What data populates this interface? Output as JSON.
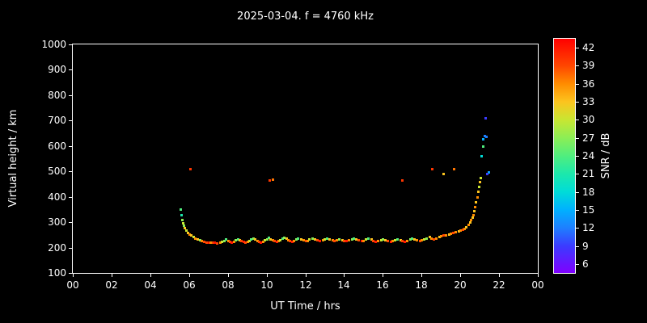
{
  "title": "2025-03-04. f = 4760 kHz",
  "colors": {
    "background": "#000000",
    "text": "#ffffff",
    "frame": "#ffffff"
  },
  "chart_data": {
    "type": "scatter",
    "title": "2025-03-04. f = 4760 kHz",
    "xlabel": "UT Time / hrs",
    "ylabel": "Virtual height / km",
    "xlim": [
      0,
      24
    ],
    "ylim": [
      100,
      1000
    ],
    "grid": false,
    "x_tick_values": [
      0,
      2,
      4,
      6,
      8,
      10,
      12,
      14,
      16,
      18,
      20,
      22,
      24
    ],
    "x_tick_labels": [
      "00",
      "02",
      "04",
      "06",
      "08",
      "10",
      "12",
      "14",
      "16",
      "18",
      "20",
      "22",
      "00"
    ],
    "y_tick_values": [
      100,
      200,
      300,
      400,
      500,
      600,
      700,
      800,
      900,
      1000
    ],
    "y_tick_labels": [
      "100",
      "200",
      "300",
      "400",
      "500",
      "600",
      "700",
      "800",
      "900",
      "1000"
    ],
    "colorbar": {
      "label": "SNR / dB",
      "min": 4.5,
      "max": 43.5,
      "tick_values": [
        6,
        9,
        12,
        15,
        18,
        21,
        24,
        27,
        30,
        33,
        36,
        39,
        42
      ],
      "tick_labels": [
        "6",
        "9",
        "12",
        "15",
        "18",
        "21",
        "24",
        "27",
        "30",
        "33",
        "36",
        "39",
        "42"
      ],
      "palette": [
        {
          "v": 4.5,
          "c": "#8000ff"
        },
        {
          "v": 9,
          "c": "#3b3bff"
        },
        {
          "v": 12,
          "c": "#1e7fff"
        },
        {
          "v": 15,
          "c": "#00b0ff"
        },
        {
          "v": 18,
          "c": "#00dcd8"
        },
        {
          "v": 21,
          "c": "#1ce8ac"
        },
        {
          "v": 24,
          "c": "#50ee7e"
        },
        {
          "v": 27,
          "c": "#8cee55"
        },
        {
          "v": 30,
          "c": "#c8e632"
        },
        {
          "v": 33,
          "c": "#fcc41e"
        },
        {
          "v": 36,
          "c": "#ff8c00"
        },
        {
          "v": 39,
          "c": "#ff4600"
        },
        {
          "v": 43.5,
          "c": "#ff0000"
        }
      ]
    },
    "points_format": [
      "ut_hours",
      "virtual_height_km",
      "snr_db"
    ],
    "points": [
      [
        5.55,
        352,
        24
      ],
      [
        5.6,
        330,
        21
      ],
      [
        5.63,
        310,
        27
      ],
      [
        5.68,
        298,
        30
      ],
      [
        5.72,
        288,
        27
      ],
      [
        5.78,
        278,
        33
      ],
      [
        5.85,
        268,
        30
      ],
      [
        5.92,
        260,
        33
      ],
      [
        6.0,
        254,
        36
      ],
      [
        6.05,
        510,
        40
      ],
      [
        6.1,
        248,
        33
      ],
      [
        6.2,
        243,
        30
      ],
      [
        6.3,
        238,
        36
      ],
      [
        6.42,
        233,
        33
      ],
      [
        6.55,
        229,
        27
      ],
      [
        6.65,
        226,
        36
      ],
      [
        6.78,
        224,
        39
      ],
      [
        6.9,
        222,
        39
      ],
      [
        7.0,
        220,
        42
      ],
      [
        7.1,
        221,
        36
      ],
      [
        7.2,
        222,
        39
      ],
      [
        7.3,
        220,
        42
      ],
      [
        7.45,
        219,
        39
      ],
      [
        7.6,
        221,
        36
      ],
      [
        7.7,
        224,
        30
      ],
      [
        7.8,
        228,
        27
      ],
      [
        7.9,
        232,
        24
      ],
      [
        8.0,
        228,
        36
      ],
      [
        8.1,
        224,
        39
      ],
      [
        8.2,
        222,
        42
      ],
      [
        8.3,
        225,
        36
      ],
      [
        8.4,
        230,
        27
      ],
      [
        8.5,
        235,
        24
      ],
      [
        8.6,
        230,
        33
      ],
      [
        8.7,
        226,
        39
      ],
      [
        8.8,
        223,
        42
      ],
      [
        8.9,
        221,
        39
      ],
      [
        9.0,
        224,
        36
      ],
      [
        9.1,
        228,
        30
      ],
      [
        9.2,
        233,
        24
      ],
      [
        9.3,
        237,
        27
      ],
      [
        9.4,
        232,
        33
      ],
      [
        9.5,
        228,
        36
      ],
      [
        9.6,
        224,
        39
      ],
      [
        9.7,
        222,
        42
      ],
      [
        9.8,
        225,
        36
      ],
      [
        9.9,
        230,
        30
      ],
      [
        10.0,
        235,
        27
      ],
      [
        10.1,
        240,
        24
      ],
      [
        10.15,
        465,
        40
      ],
      [
        10.2,
        235,
        33
      ],
      [
        10.3,
        230,
        36
      ],
      [
        10.32,
        468,
        37
      ],
      [
        10.4,
        226,
        39
      ],
      [
        10.5,
        223,
        42
      ],
      [
        10.6,
        226,
        36
      ],
      [
        10.7,
        231,
        30
      ],
      [
        10.8,
        236,
        24
      ],
      [
        10.9,
        240,
        27
      ],
      [
        11.0,
        236,
        33
      ],
      [
        11.1,
        231,
        36
      ],
      [
        11.2,
        227,
        39
      ],
      [
        11.3,
        224,
        42
      ],
      [
        11.4,
        227,
        36
      ],
      [
        11.5,
        232,
        27
      ],
      [
        11.6,
        237,
        24
      ],
      [
        11.75,
        233,
        33
      ],
      [
        11.9,
        229,
        36
      ],
      [
        12.0,
        226,
        39
      ],
      [
        12.1,
        228,
        36
      ],
      [
        12.2,
        232,
        30
      ],
      [
        12.35,
        236,
        27
      ],
      [
        12.5,
        232,
        33
      ],
      [
        12.6,
        229,
        39
      ],
      [
        12.75,
        227,
        42
      ],
      [
        12.9,
        230,
        36
      ],
      [
        13.0,
        234,
        30
      ],
      [
        13.1,
        238,
        24
      ],
      [
        13.25,
        234,
        33
      ],
      [
        13.4,
        230,
        36
      ],
      [
        13.5,
        228,
        39
      ],
      [
        13.6,
        231,
        36
      ],
      [
        13.75,
        235,
        27
      ],
      [
        13.9,
        231,
        33
      ],
      [
        14.0,
        228,
        39
      ],
      [
        14.1,
        226,
        42
      ],
      [
        14.25,
        229,
        36
      ],
      [
        14.4,
        233,
        27
      ],
      [
        14.5,
        237,
        24
      ],
      [
        14.6,
        233,
        33
      ],
      [
        14.75,
        229,
        39
      ],
      [
        14.9,
        226,
        42
      ],
      [
        15.0,
        228,
        36
      ],
      [
        15.1,
        232,
        30
      ],
      [
        15.25,
        236,
        24
      ],
      [
        15.4,
        232,
        33
      ],
      [
        15.5,
        228,
        39
      ],
      [
        15.6,
        225,
        42
      ],
      [
        15.75,
        227,
        36
      ],
      [
        15.9,
        231,
        30
      ],
      [
        16.0,
        235,
        27
      ],
      [
        16.1,
        231,
        33
      ],
      [
        16.25,
        227,
        39
      ],
      [
        16.4,
        224,
        42
      ],
      [
        16.5,
        226,
        36
      ],
      [
        16.6,
        230,
        30
      ],
      [
        16.75,
        234,
        24
      ],
      [
        16.9,
        230,
        33
      ],
      [
        17.0,
        465,
        40
      ],
      [
        17.0,
        227,
        39
      ],
      [
        17.1,
        225,
        42
      ],
      [
        17.25,
        228,
        36
      ],
      [
        17.4,
        232,
        27
      ],
      [
        17.5,
        236,
        24
      ],
      [
        17.6,
        232,
        33
      ],
      [
        17.75,
        229,
        36
      ],
      [
        17.9,
        227,
        39
      ],
      [
        18.0,
        230,
        36
      ],
      [
        18.1,
        234,
        30
      ],
      [
        18.25,
        238,
        27
      ],
      [
        18.4,
        242,
        33
      ],
      [
        18.5,
        238,
        36
      ],
      [
        18.55,
        510,
        40
      ],
      [
        18.6,
        235,
        39
      ],
      [
        18.75,
        238,
        36
      ],
      [
        18.9,
        242,
        33
      ],
      [
        19.0,
        246,
        36
      ],
      [
        19.1,
        490,
        33
      ],
      [
        19.1,
        250,
        39
      ],
      [
        19.25,
        248,
        36
      ],
      [
        19.4,
        252,
        33
      ],
      [
        19.5,
        255,
        36
      ],
      [
        19.6,
        258,
        39
      ],
      [
        19.65,
        510,
        37
      ],
      [
        19.75,
        262,
        36
      ],
      [
        19.9,
        265,
        33
      ],
      [
        20.0,
        268,
        36
      ],
      [
        20.1,
        272,
        39
      ],
      [
        20.2,
        276,
        36
      ],
      [
        20.3,
        282,
        33
      ],
      [
        20.4,
        290,
        36
      ],
      [
        20.5,
        300,
        33
      ],
      [
        20.55,
        310,
        36
      ],
      [
        20.6,
        320,
        33
      ],
      [
        20.65,
        330,
        36
      ],
      [
        20.7,
        345,
        33
      ],
      [
        20.75,
        360,
        36
      ],
      [
        20.8,
        380,
        33
      ],
      [
        20.85,
        400,
        36
      ],
      [
        20.9,
        420,
        33
      ],
      [
        20.95,
        440,
        30
      ],
      [
        21.0,
        460,
        33
      ],
      [
        21.05,
        475,
        30
      ],
      [
        21.08,
        560,
        18
      ],
      [
        21.15,
        600,
        24
      ],
      [
        21.18,
        628,
        15
      ],
      [
        21.25,
        640,
        12
      ],
      [
        21.3,
        710,
        9
      ],
      [
        21.33,
        636,
        12
      ],
      [
        21.38,
        492,
        9
      ],
      [
        21.44,
        496,
        14
      ]
    ]
  }
}
